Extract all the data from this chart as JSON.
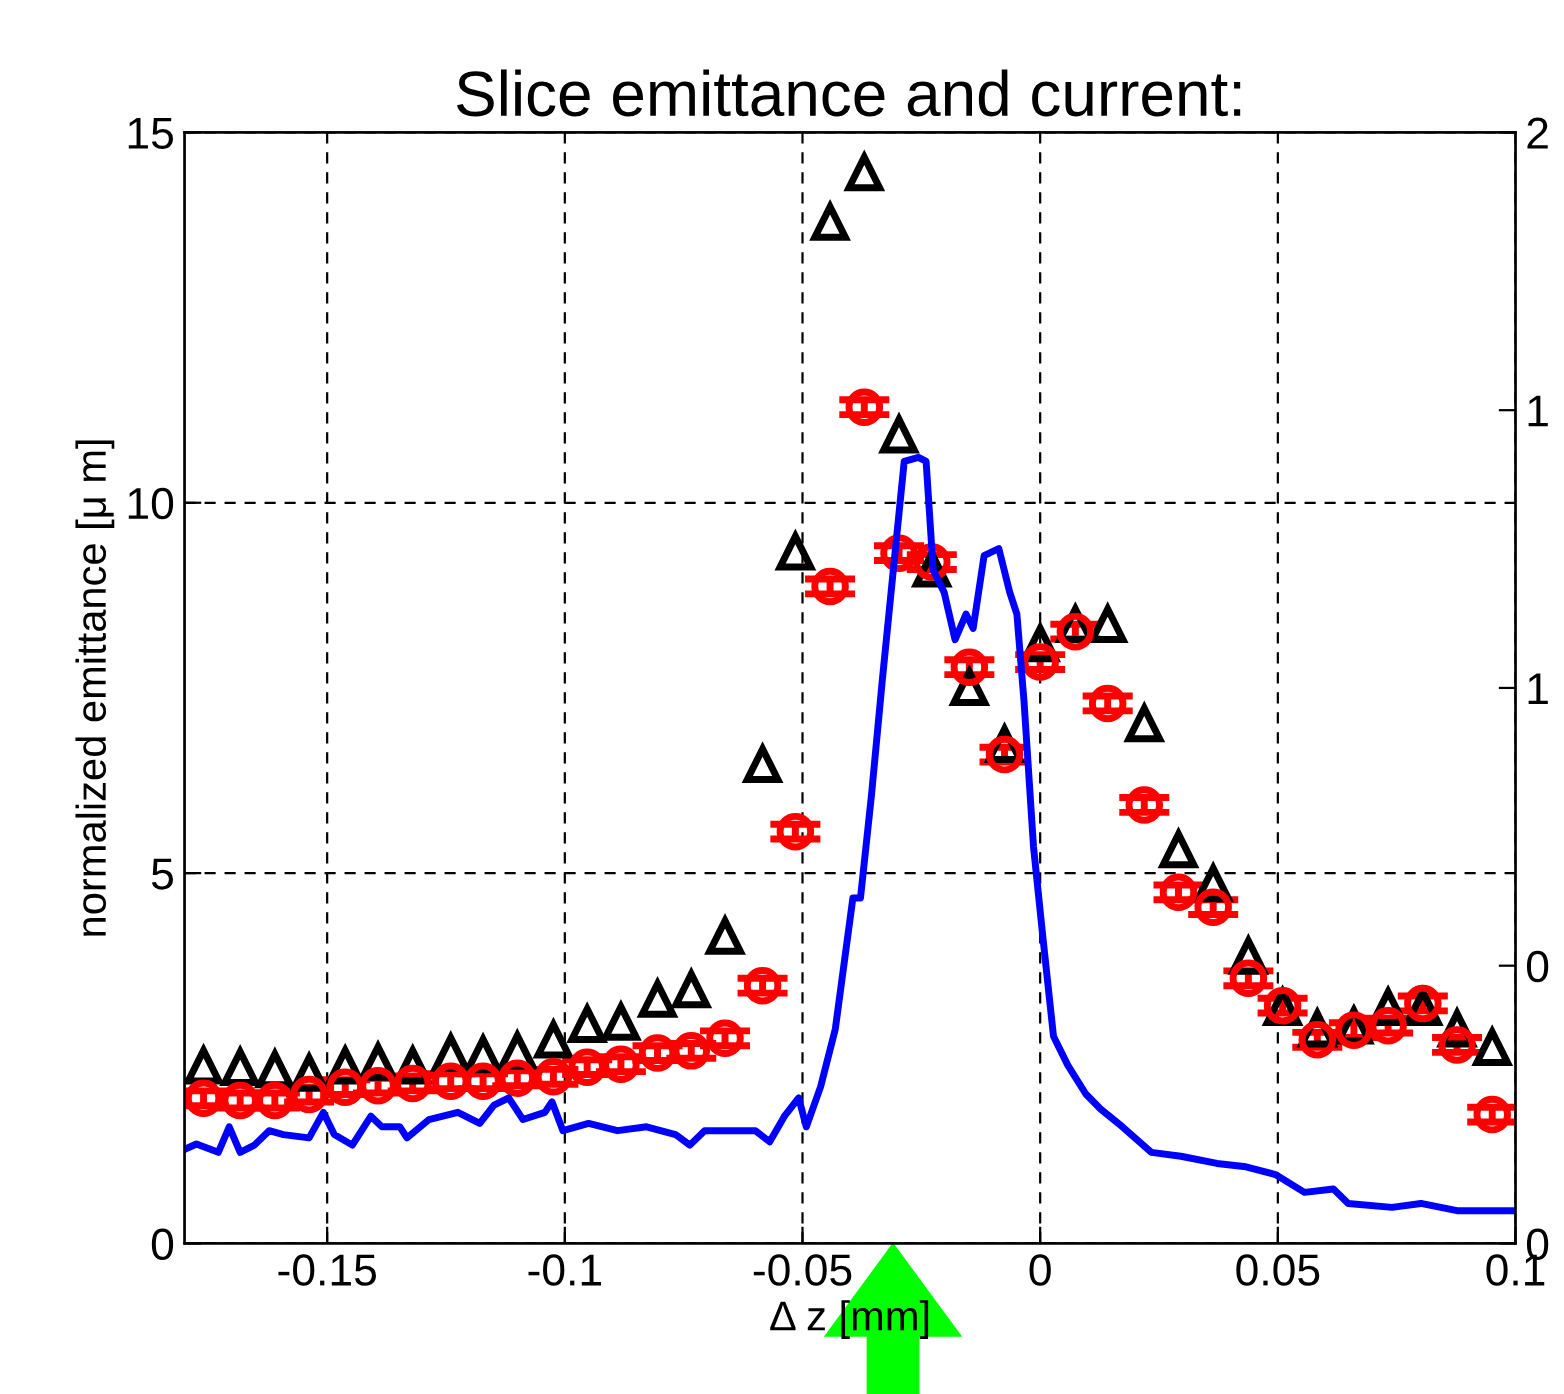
{
  "chart_data": {
    "type": "scatter",
    "title": "Slice emittance and current:",
    "xlabel": "Δ z [mm]",
    "ylabel": "normalized emittance [μ m]",
    "xlim": [
      -0.18,
      0.1
    ],
    "xticks": [
      -0.15,
      -0.1,
      -0.05,
      0,
      0.05,
      0.1
    ],
    "ylim": [
      0,
      15
    ],
    "yticks": [
      0,
      5,
      10,
      15
    ],
    "y2lim": [
      0,
      2
    ],
    "y2ticks": [
      {
        "value": 0,
        "label": "0"
      },
      {
        "value": 0.5,
        "label": "0"
      },
      {
        "value": 1,
        "label": "1"
      },
      {
        "value": 1.5,
        "label": "1"
      },
      {
        "value": 2,
        "label": "2"
      }
    ],
    "grid": true,
    "legend": false,
    "series": [
      {
        "marker": "triangle",
        "color": "#000000",
        "x": [
          -0.176,
          -0.1683,
          -0.161,
          -0.1538,
          -0.1462,
          -0.1393,
          -0.132,
          -0.124,
          -0.1172,
          -0.11,
          -0.1024,
          -0.0953,
          -0.0882,
          -0.0805,
          -0.0734,
          -0.0663,
          -0.0584,
          -0.0515,
          -0.0442,
          -0.037,
          -0.0297,
          -0.0228,
          -0.0149,
          -0.0075,
          0.0,
          0.0074,
          0.0142,
          0.0219,
          0.0291,
          0.0364,
          0.0438,
          0.051,
          0.0583,
          0.066,
          0.0732,
          0.0805,
          0.0877,
          0.0951
        ],
        "values": [
          2.4,
          2.38,
          2.35,
          2.3,
          2.4,
          2.45,
          2.4,
          2.57,
          2.55,
          2.6,
          2.75,
          2.96,
          2.99,
          3.3,
          3.43,
          4.15,
          6.47,
          9.34,
          13.79,
          14.46,
          10.92,
          9.11,
          7.51,
          6.74,
          8.1,
          8.36,
          8.36,
          7.02,
          5.32,
          4.86,
          3.88,
          3.19,
          2.9,
          2.94,
          3.19,
          3.19,
          2.9,
          2.65
        ]
      },
      {
        "marker": "circle",
        "color": "#ff0000",
        "x": [
          -0.176,
          -0.1683,
          -0.161,
          -0.1538,
          -0.1462,
          -0.1393,
          -0.132,
          -0.124,
          -0.1172,
          -0.11,
          -0.1024,
          -0.0953,
          -0.0882,
          -0.0805,
          -0.0734,
          -0.0663,
          -0.0584,
          -0.0515,
          -0.0442,
          -0.037,
          -0.0297,
          -0.0228,
          -0.0149,
          -0.0075,
          0.0,
          0.0074,
          0.0142,
          0.0219,
          0.0291,
          0.0364,
          0.0438,
          0.051,
          0.0583,
          0.066,
          0.0732,
          0.0805,
          0.0877,
          0.0951
        ],
        "values": [
          1.96,
          1.93,
          1.93,
          2.01,
          2.11,
          2.13,
          2.16,
          2.19,
          2.19,
          2.23,
          2.25,
          2.38,
          2.42,
          2.57,
          2.6,
          2.77,
          3.48,
          5.56,
          8.87,
          11.29,
          9.32,
          9.2,
          7.78,
          6.6,
          7.85,
          8.26,
          7.29,
          5.92,
          4.74,
          4.54,
          3.58,
          3.21,
          2.75,
          2.88,
          2.94,
          3.24,
          2.68,
          1.74
        ],
        "errors": [
          0.1,
          0.1,
          0.1,
          0.1,
          0.1,
          0.1,
          0.1,
          0.1,
          0.1,
          0.1,
          0.1,
          0.1,
          0.1,
          0.1,
          0.1,
          0.1,
          0.1,
          0.1,
          0.1,
          0.1,
          0.1,
          0.1,
          0.1,
          0.1,
          0.1,
          0.1,
          0.1,
          0.1,
          0.1,
          0.1,
          0.1,
          0.1,
          0.1,
          0.1,
          0.1,
          0.1,
          0.1,
          0.1
        ]
      },
      {
        "type": "line",
        "axis": "y2",
        "marker": "none",
        "line_style": "solid",
        "color": "#0000ff",
        "x": [
          -0.1798,
          -0.1775,
          -0.1729,
          -0.1706,
          -0.1683,
          -0.1653,
          -0.1622,
          -0.1592,
          -0.1538,
          -0.1508,
          -0.1485,
          -0.1447,
          -0.1408,
          -0.1385,
          -0.1347,
          -0.1332,
          -0.1286,
          -0.1225,
          -0.1179,
          -0.1149,
          -0.1118,
          -0.1088,
          -0.1042,
          -0.1027,
          -0.1004,
          -0.095,
          -0.0889,
          -0.0828,
          -0.0767,
          -0.0737,
          -0.0706,
          -0.0645,
          -0.0599,
          -0.0569,
          -0.0538,
          -0.0508,
          -0.0492,
          -0.0462,
          -0.0431,
          -0.0394,
          -0.0378,
          -0.0355,
          -0.0332,
          -0.0309,
          -0.0286,
          -0.0256,
          -0.024,
          -0.0225,
          -0.0202,
          -0.0179,
          -0.0156,
          -0.0141,
          -0.0118,
          -0.0087,
          -0.0064,
          -0.0049,
          -0.0034,
          -0.0014,
          0.0005,
          0.0028,
          0.0058,
          0.0096,
          0.0127,
          0.0173,
          0.0234,
          0.0296,
          0.0372,
          0.0433,
          0.0495,
          0.0556,
          0.0617,
          0.0648,
          0.074,
          0.0801,
          0.0877,
          0.0954,
          0.1
        ],
        "values": [
          0.17,
          0.179,
          0.164,
          0.21,
          0.164,
          0.177,
          0.203,
          0.196,
          0.19,
          0.236,
          0.196,
          0.177,
          0.229,
          0.21,
          0.21,
          0.19,
          0.223,
          0.236,
          0.216,
          0.249,
          0.262,
          0.223,
          0.236,
          0.255,
          0.203,
          0.216,
          0.203,
          0.21,
          0.196,
          0.177,
          0.203,
          0.203,
          0.203,
          0.183,
          0.229,
          0.262,
          0.21,
          0.282,
          0.386,
          0.622,
          0.622,
          0.806,
          1.015,
          1.212,
          1.408,
          1.415,
          1.408,
          1.212,
          1.172,
          1.087,
          1.133,
          1.107,
          1.238,
          1.251,
          1.172,
          1.133,
          0.976,
          0.714,
          0.557,
          0.373,
          0.321,
          0.269,
          0.242,
          0.21,
          0.164,
          0.157,
          0.144,
          0.138,
          0.124,
          0.092,
          0.098,
          0.072,
          0.065,
          0.072,
          0.059,
          0.059,
          0.059
        ]
      }
    ]
  }
}
